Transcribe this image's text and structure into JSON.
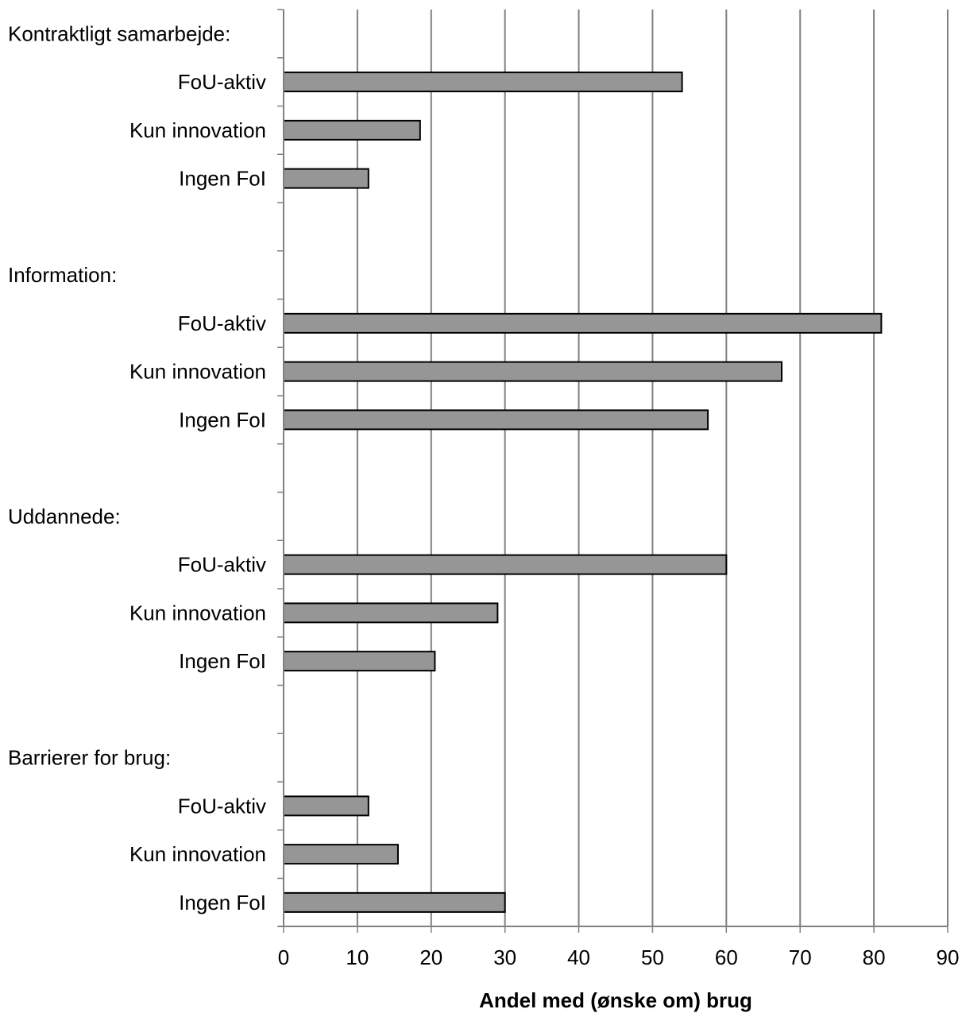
{
  "chart_data": {
    "type": "bar",
    "orientation": "horizontal",
    "xlabel": "Andel med (ønske om) brug",
    "ylabel": "",
    "xlim": [
      0,
      90
    ],
    "x_ticks": [
      0,
      10,
      20,
      30,
      40,
      50,
      60,
      70,
      80,
      90
    ],
    "grid": "vertical",
    "bar_color": "#969696",
    "bar_edge_color": "#000000",
    "groups": [
      {
        "label": "Kontraktligt samarbejde:",
        "categories": [
          "FoU-aktiv",
          "Kun innovation",
          "Ingen FoI"
        ],
        "values": [
          54,
          18.5,
          11.5
        ]
      },
      {
        "label": "Information:",
        "categories": [
          "FoU-aktiv",
          "Kun innovation",
          "Ingen FoI"
        ],
        "values": [
          81,
          67.5,
          57.5
        ]
      },
      {
        "label": "Uddannede:",
        "categories": [
          "FoU-aktiv",
          "Kun innovation",
          "Ingen FoI"
        ],
        "values": [
          60,
          29,
          20.5
        ]
      },
      {
        "label": "Barrierer for brug:",
        "categories": [
          "FoU-aktiv",
          "Kun innovation",
          "Ingen FoI"
        ],
        "values": [
          11.5,
          15.5,
          30
        ]
      }
    ]
  }
}
